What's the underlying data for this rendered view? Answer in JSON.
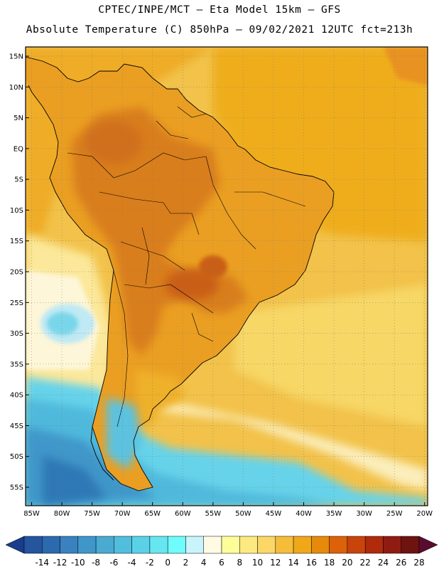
{
  "header": {
    "line1": "CPTEC/INPE/MCT –  Eta Model 15km – GFS",
    "line2": "Absolute Temperature (C) 850hPa – 09/02/2021 12UTC fct=213h"
  },
  "axes": {
    "lat_labels": [
      "15N",
      "10N",
      "5N",
      "EQ",
      "5S",
      "10S",
      "15S",
      "20S",
      "25S",
      "30S",
      "35S",
      "40S",
      "45S",
      "50S",
      "55S"
    ],
    "lat_values": [
      15,
      10,
      5,
      0,
      -5,
      -10,
      -15,
      -20,
      -25,
      -30,
      -35,
      -40,
      -45,
      -50,
      -55
    ],
    "lon_labels": [
      "85W",
      "80W",
      "75W",
      "70W",
      "65W",
      "60W",
      "55W",
      "50W",
      "45W",
      "40W",
      "35W",
      "30W",
      "25W",
      "20W"
    ],
    "lon_values": [
      -85,
      -80,
      -75,
      -70,
      -65,
      -60,
      -55,
      -50,
      -45,
      -40,
      -35,
      -30,
      -25,
      -20
    ],
    "lat_range": [
      -58,
      16.5
    ],
    "lon_range": [
      -86,
      -19.5
    ]
  },
  "colorbar": {
    "labels": [
      "-14",
      "-12",
      "-10",
      "-8",
      "-6",
      "-4",
      "-2",
      "0",
      "2",
      "4",
      "6",
      "8",
      "10",
      "12",
      "14",
      "16",
      "18",
      "20",
      "22",
      "24",
      "26",
      "28"
    ],
    "colors": [
      "#1a3c8c",
      "#24559e",
      "#2b6aae",
      "#3a82bf",
      "#3f97c9",
      "#4aaad2",
      "#52bedd",
      "#5bd1e7",
      "#66e6f0",
      "#6ffcfc",
      "#c9f4fb",
      "#fffae4",
      "#fdfd9a",
      "#fde981",
      "#fbd768",
      "#f5bd3a",
      "#f0a818",
      "#e68a0a",
      "#dd6108",
      "#c9440b",
      "#b02a0c",
      "#8f1c12",
      "#6e1310",
      "#5a0c2e"
    ]
  },
  "map": {
    "ocean_color": "#f5d36b",
    "land_color": "#e89d22",
    "hot_color": "#d2711c",
    "cold_sea_color": "#5ac8e6",
    "deep_cold_color": "#3f8fc6",
    "pale_color": "#fdf1c7"
  }
}
